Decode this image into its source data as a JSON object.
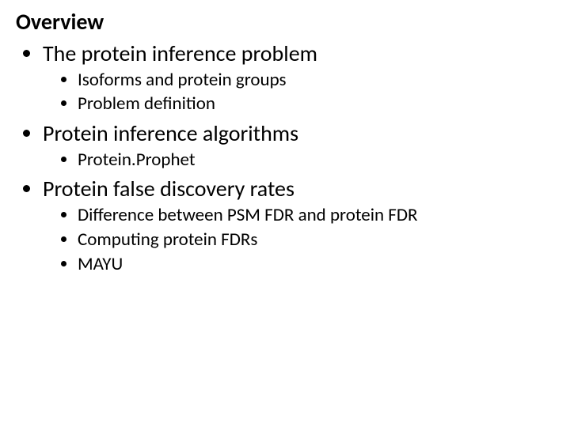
{
  "title": "Overview",
  "outline": [
    {
      "text": "The protein inference problem",
      "children": [
        {
          "text": "Isoforms and protein groups"
        },
        {
          "text": "Problem definition"
        }
      ]
    },
    {
      "text": "Protein inference algorithms",
      "children": [
        {
          "text": "Protein.Prophet"
        }
      ]
    },
    {
      "text": "Protein false discovery rates",
      "children": [
        {
          "text": "Difference between PSM FDR and protein FDR"
        },
        {
          "text": "Computing protein FDRs"
        },
        {
          "text": "MAYU"
        }
      ]
    }
  ],
  "style": {
    "background_color": "#ffffff",
    "text_color": "#000000",
    "font_family": "Calibri",
    "title_fontsize_pt": 21,
    "level1_fontsize_pt": 21,
    "level2_fontsize_pt": 17,
    "bullet_marker": "disc"
  }
}
